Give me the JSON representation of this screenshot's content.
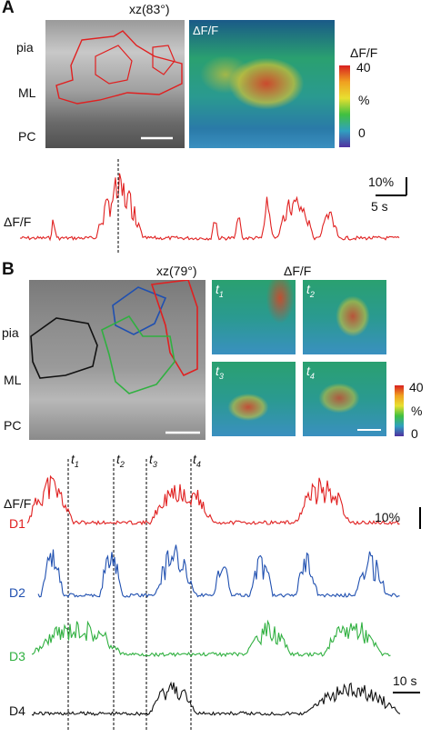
{
  "panel_a": {
    "letter": "A",
    "angle_label": "xz(83°)",
    "dff_label": "ΔF/F",
    "layers": [
      "pia",
      "ML",
      "PC"
    ],
    "colorbar": {
      "title": "ΔF/F",
      "max": "40",
      "unit": "%",
      "min": "0"
    },
    "trace_label": "ΔF/F",
    "scale_y": "10%",
    "scale_x": "5 s"
  },
  "panel_b": {
    "letter": "B",
    "angle_label": "xz(79°)",
    "dff_label": "ΔF/F",
    "layers": [
      "pia",
      "ML",
      "PC"
    ],
    "time_points": [
      "t",
      "t",
      "t",
      "t"
    ],
    "time_subs": [
      "1",
      "2",
      "3",
      "4"
    ],
    "colorbar": {
      "max": "40",
      "unit": "%",
      "min": "0"
    },
    "trace_dff": "ΔF/F",
    "scale_y": "10%",
    "scale_x": "10 s",
    "traces": [
      {
        "name": "D1",
        "color": "#e02020"
      },
      {
        "name": "D2",
        "color": "#2050b0"
      },
      {
        "name": "D3",
        "color": "#30b040"
      },
      {
        "name": "D4",
        "color": "#111111"
      }
    ]
  }
}
